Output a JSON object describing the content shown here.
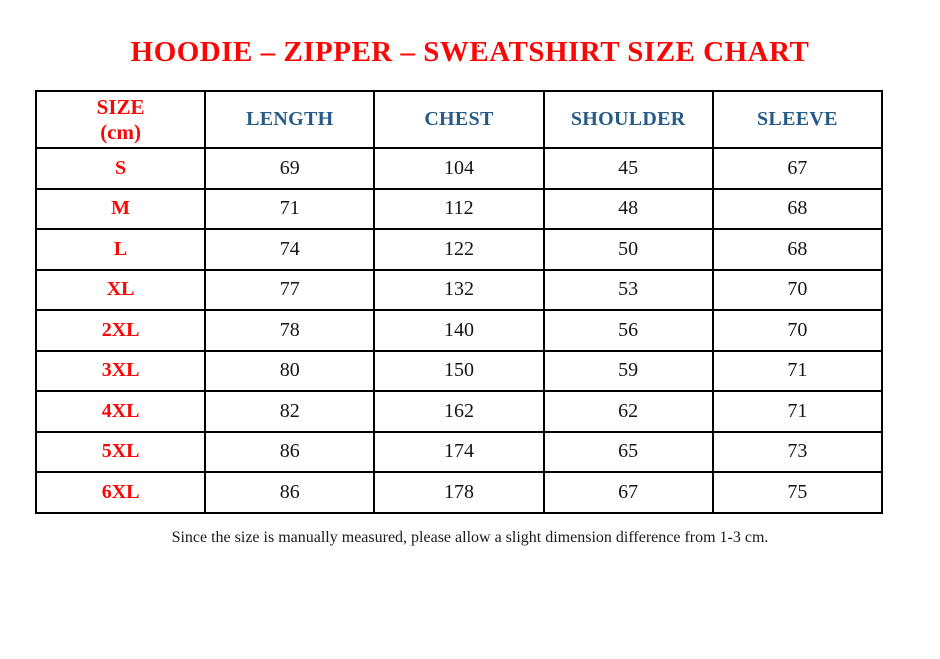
{
  "page": {
    "stray_mark": ".",
    "title": "HOODIE – ZIPPER – SWEATSHIRT SIZE CHART",
    "footnote": "Since the size is manually measured, please allow a slight dimension difference from 1-3 cm."
  },
  "colors": {
    "title_red": "#fb0505",
    "size_label_red": "#fb0505",
    "header_blue": "#265a87",
    "value_black": "#151515",
    "border_black": "#000000"
  },
  "table": {
    "header": {
      "size_label": "SIZE",
      "size_unit": "(cm)",
      "columns": [
        "LENGTH",
        "CHEST",
        "SHOULDER",
        "SLEEVE"
      ]
    },
    "rows": [
      {
        "size": "S",
        "length": "69",
        "chest": "104",
        "shoulder": "45",
        "sleeve": "67"
      },
      {
        "size": "M",
        "length": "71",
        "chest": "112",
        "shoulder": "48",
        "sleeve": "68"
      },
      {
        "size": "L",
        "length": "74",
        "chest": "122",
        "shoulder": "50",
        "sleeve": "68"
      },
      {
        "size": "XL",
        "length": "77",
        "chest": "132",
        "shoulder": "53",
        "sleeve": "70"
      },
      {
        "size": "2XL",
        "length": "78",
        "chest": "140",
        "shoulder": "56",
        "sleeve": "70"
      },
      {
        "size": "3XL",
        "length": "80",
        "chest": "150",
        "shoulder": "59",
        "sleeve": "71"
      },
      {
        "size": "4XL",
        "length": "82",
        "chest": "162",
        "shoulder": "62",
        "sleeve": "71"
      },
      {
        "size": "5XL",
        "length": "86",
        "chest": "174",
        "shoulder": "65",
        "sleeve": "73"
      },
      {
        "size": "6XL",
        "length": "86",
        "chest": "178",
        "shoulder": "67",
        "sleeve": "75"
      }
    ]
  }
}
